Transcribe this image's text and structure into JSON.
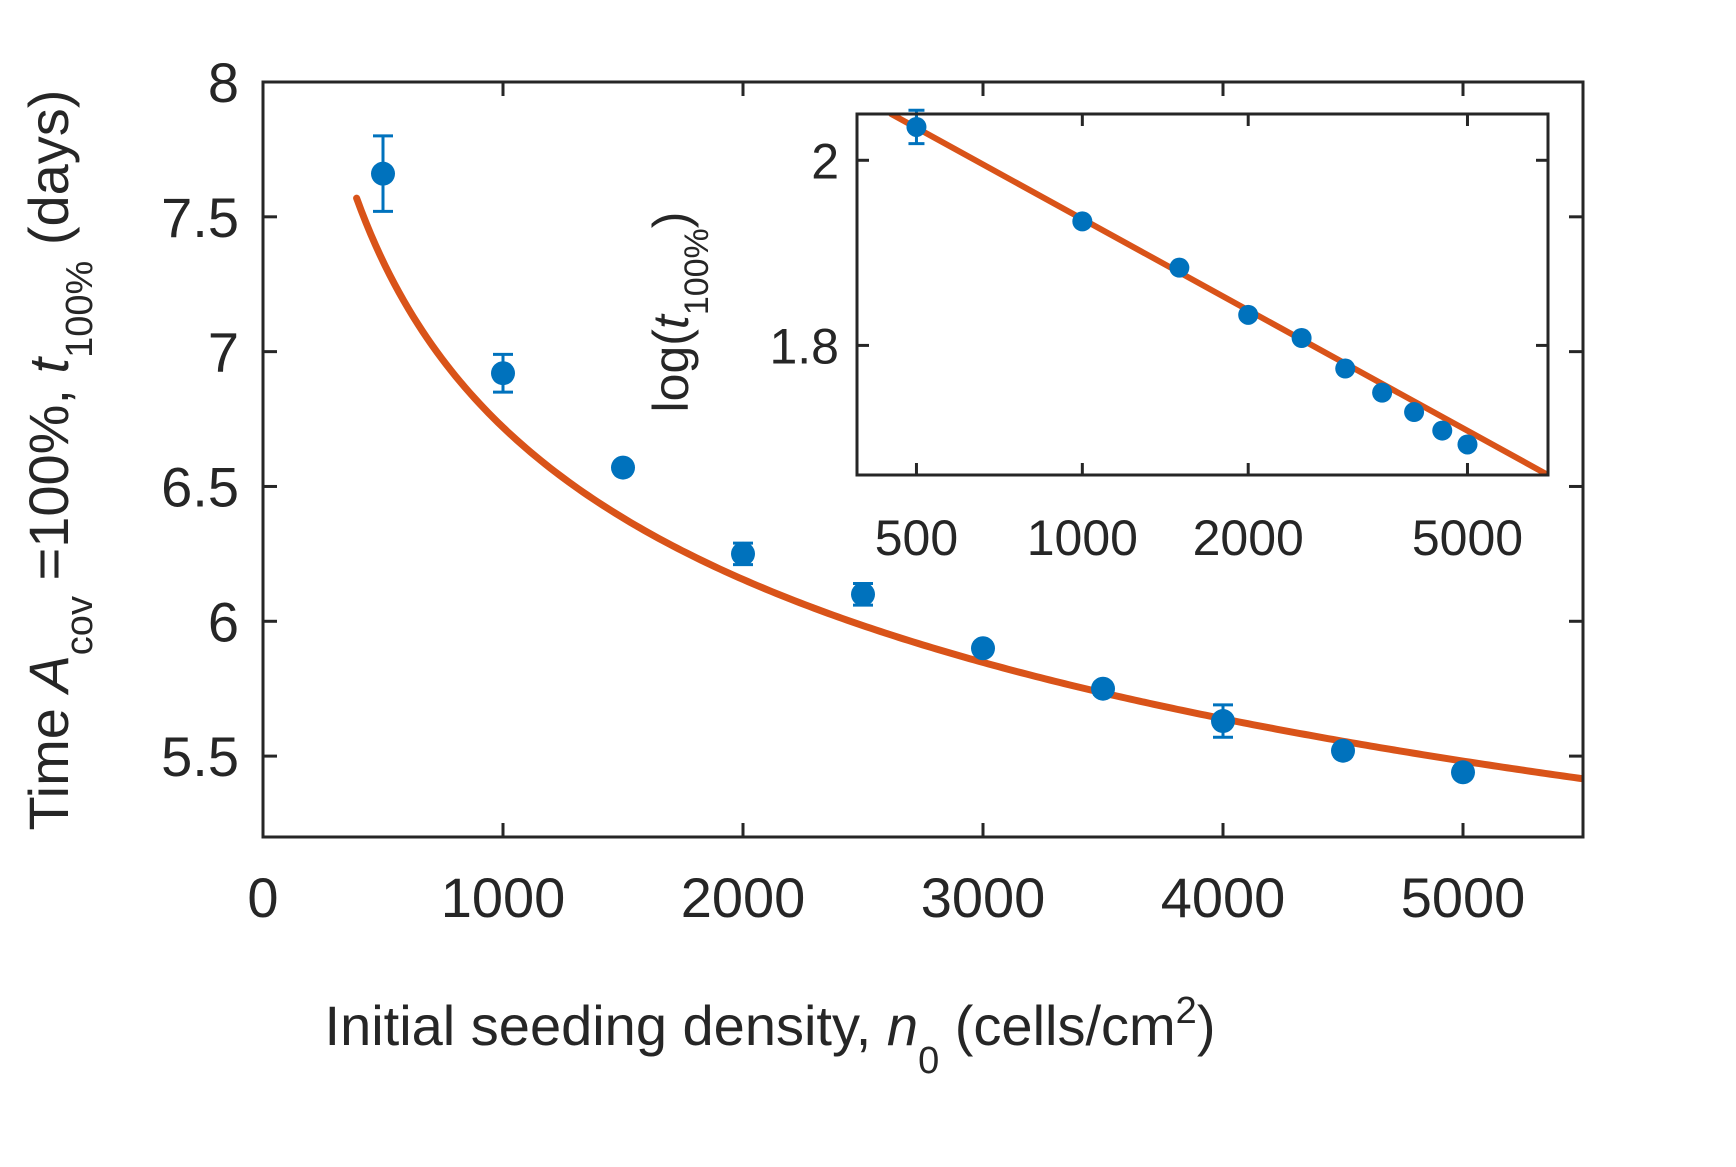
{
  "chart_data": [
    {
      "type": "scatter",
      "role": "main",
      "xlabel_parts": {
        "prefix": "Initial seeding density, ",
        "var": "n",
        "var_sub": "0",
        "unit": " (cells/cm",
        "unit_sup": "2",
        "close": ")"
      },
      "ylabel_parts": {
        "p1": "Time ",
        "var1": "A",
        "var1_sub": "cov",
        "p2": " =100%, ",
        "var2": "t",
        "var2_sub": "100%",
        "p3": " (days)"
      },
      "xlim": [
        0,
        5500
      ],
      "ylim": [
        5.2,
        8
      ],
      "xticks": [
        0,
        1000,
        2000,
        3000,
        4000,
        5000
      ],
      "xtick_labels": [
        "0",
        "1000",
        "2000",
        "3000",
        "4000",
        "5000"
      ],
      "yticks": [
        5.5,
        6,
        6.5,
        7,
        7.5,
        8
      ],
      "ytick_labels": [
        "5.5",
        "6",
        "6.5",
        "7",
        "7.5",
        "8"
      ],
      "series": [
        {
          "name": "data",
          "marker": "circle",
          "color": "#0072BD",
          "x": [
            500,
            1000,
            1500,
            2000,
            2500,
            3000,
            3500,
            4000,
            4500,
            5000
          ],
          "y": [
            7.66,
            6.92,
            6.57,
            6.25,
            6.1,
            5.9,
            5.75,
            5.63,
            5.52,
            5.44
          ],
          "err": [
            0.14,
            0.07,
            0.02,
            0.04,
            0.04,
            0.02,
            0.02,
            0.06,
            0.02,
            0.02
          ]
        },
        {
          "name": "fit",
          "type": "line",
          "color": "#D95319",
          "formula": "y = a * x^b",
          "a": 16.1,
          "b": -0.1265,
          "x_range": [
            390,
            5500
          ]
        }
      ]
    },
    {
      "type": "scatter",
      "role": "inset",
      "ylabel_parts": {
        "p1": "log(",
        "var": "t",
        "var_sub": "100%",
        "p2": ")"
      },
      "xscale": "log",
      "xlim": [
        390,
        7000
      ],
      "ylim": [
        1.66,
        2.05
      ],
      "xticks": [
        500,
        1000,
        2000,
        5000
      ],
      "xtick_labels": [
        "500",
        "1000",
        "2000",
        "5000"
      ],
      "yticks": [
        1.8,
        2.0
      ],
      "ytick_labels": [
        "1.8",
        "2"
      ],
      "series": [
        {
          "name": "data",
          "marker": "circle",
          "color": "#0072BD",
          "x": [
            500,
            1000,
            1500,
            2000,
            2500,
            3000,
            3500,
            4000,
            4500,
            5000
          ],
          "y": [
            2.036,
            1.934,
            1.884,
            1.833,
            1.808,
            1.775,
            1.749,
            1.728,
            1.708,
            1.693
          ],
          "err": [
            0.018,
            0,
            0,
            0,
            0,
            0,
            0,
            0,
            0,
            0
          ]
        },
        {
          "name": "fit",
          "type": "line",
          "color": "#D95319",
          "x": [
            450,
            7000
          ],
          "y": [
            2.05,
            1.66
          ]
        }
      ]
    }
  ]
}
